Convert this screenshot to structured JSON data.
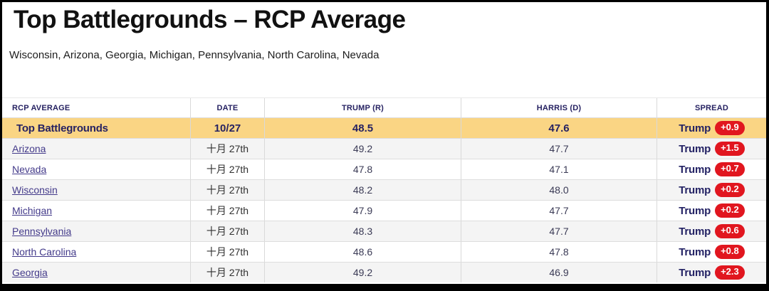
{
  "page": {
    "title": "Top Battlegrounds – RCP Average",
    "subtitle": "Wisconsin, Arizona, Georgia, Michigan, Pennsylvania, North Carolina, Nevada"
  },
  "table": {
    "columns": [
      "RCP AVERAGE",
      "DATE",
      "TRUMP (R)",
      "HARRIS (D)",
      "SPREAD"
    ],
    "summary": {
      "name": "Top Battlegrounds",
      "date": "10/27",
      "trump": "48.5",
      "harris": "47.6",
      "spread_label": "Trump",
      "spread_value": "+0.9"
    },
    "rows": [
      {
        "name": "Arizona",
        "date": "十月 27th",
        "trump": "49.2",
        "harris": "47.7",
        "spread_label": "Trump",
        "spread_value": "+1.5"
      },
      {
        "name": "Nevada",
        "date": "十月 27th",
        "trump": "47.8",
        "harris": "47.1",
        "spread_label": "Trump",
        "spread_value": "+0.7"
      },
      {
        "name": "Wisconsin",
        "date": "十月 27th",
        "trump": "48.2",
        "harris": "48.0",
        "spread_label": "Trump",
        "spread_value": "+0.2"
      },
      {
        "name": "Michigan",
        "date": "十月 27th",
        "trump": "47.9",
        "harris": "47.7",
        "spread_label": "Trump",
        "spread_value": "+0.2"
      },
      {
        "name": "Pennsylvania",
        "date": "十月 27th",
        "trump": "48.3",
        "harris": "47.7",
        "spread_label": "Trump",
        "spread_value": "+0.6"
      },
      {
        "name": "North Carolina",
        "date": "十月 27th",
        "trump": "48.6",
        "harris": "47.8",
        "spread_label": "Trump",
        "spread_value": "+0.8"
      },
      {
        "name": "Georgia",
        "date": "十月 27th",
        "trump": "49.2",
        "harris": "46.9",
        "spread_label": "Trump",
        "spread_value": "+2.3"
      }
    ]
  },
  "colors": {
    "highlight_row": "#fad584",
    "alt_row": "#f4f4f4",
    "header_text": "#262262",
    "state_link": "#433a8a",
    "badge_background": "#e1161f",
    "badge_text": "#ffffff",
    "frame_border": "#000000"
  },
  "chart_data": {
    "type": "table",
    "title": "Top Battlegrounds – RCP Average",
    "subtitle": "Wisconsin, Arizona, Georgia, Michigan, Pennsylvania, North Carolina, Nevada",
    "columns": [
      "RCP AVERAGE",
      "DATE",
      "TRUMP (R)",
      "HARRIS (D)",
      "SPREAD"
    ],
    "rows": [
      [
        "Top Battlegrounds",
        "10/27",
        48.5,
        47.6,
        "Trump +0.9"
      ],
      [
        "Arizona",
        "十月 27th",
        49.2,
        47.7,
        "Trump +1.5"
      ],
      [
        "Nevada",
        "十月 27th",
        47.8,
        47.1,
        "Trump +0.7"
      ],
      [
        "Wisconsin",
        "十月 27th",
        48.2,
        48.0,
        "Trump +0.2"
      ],
      [
        "Michigan",
        "十月 27th",
        47.9,
        47.7,
        "Trump +0.2"
      ],
      [
        "Pennsylvania",
        "十月 27th",
        48.3,
        47.7,
        "Trump +0.6"
      ],
      [
        "North Carolina",
        "十月 27th",
        48.6,
        47.8,
        "Trump +0.8"
      ],
      [
        "Georgia",
        "十月 27th",
        49.2,
        46.9,
        "Trump +2.3"
      ]
    ]
  }
}
